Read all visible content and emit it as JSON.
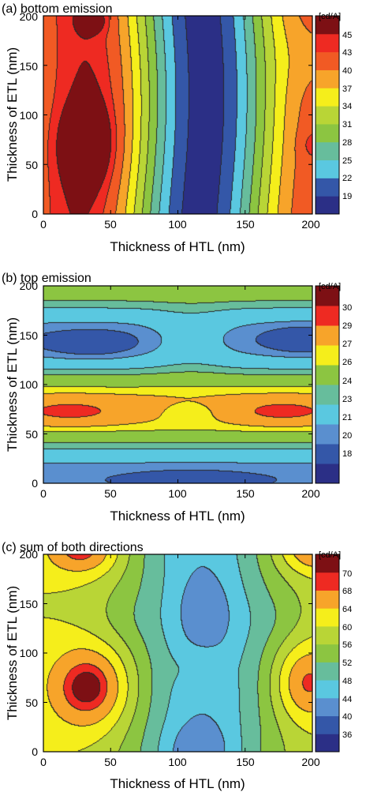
{
  "chart_data": [
    {
      "type": "heatmap",
      "subtype": "filled-contour",
      "title": "(a) bottom emission",
      "xlabel": "Thickness of HTL (nm)",
      "ylabel": "Thickness of ETL (nm)",
      "xlim": [
        0,
        200
      ],
      "ylim": [
        0,
        200
      ],
      "x_ticks": [
        "0",
        "50",
        "100",
        "150",
        "200"
      ],
      "y_ticks": [
        "0",
        "50",
        "100",
        "150",
        "200"
      ],
      "colorbar_unit": "[cd/A]",
      "colorbar_levels": [
        "19",
        "22",
        "25",
        "28",
        "31",
        "34",
        "37",
        "40",
        "43",
        "45"
      ],
      "level_values": [
        19,
        22,
        25,
        28,
        31,
        34,
        37,
        40,
        43,
        45
      ],
      "range": [
        16,
        47
      ],
      "colors": [
        "#2b2f86",
        "#3457a8",
        "#5ac8e0",
        "#67bd9c",
        "#8cc541",
        "#b9d536",
        "#f5ee1b",
        "#f7a42a",
        "#f15a24",
        "#ee2a22",
        "#7d1014"
      ],
      "features": [
        {
          "kind": "minimum_band",
          "x": 117,
          "value": 17
        },
        {
          "kind": "local_maximum",
          "x": 32,
          "y": 70,
          "value": 47
        },
        {
          "kind": "local_maximum",
          "x": 37,
          "y": 195,
          "value": 46
        },
        {
          "kind": "local_maximum",
          "x": 200,
          "y": 70,
          "value": 44
        }
      ]
    },
    {
      "type": "heatmap",
      "subtype": "filled-contour",
      "title": "(b) top emission",
      "xlabel": "Thickness of HTL (nm)",
      "ylabel": "Thickness of ETL (nm)",
      "xlim": [
        0,
        200
      ],
      "ylim": [
        0,
        200
      ],
      "x_ticks": [
        "0",
        "50",
        "100",
        "150",
        "200"
      ],
      "y_ticks": [
        "0",
        "50",
        "100",
        "150",
        "200"
      ],
      "colorbar_unit": "[cd/A]",
      "colorbar_levels": [
        "18",
        "20",
        "21",
        "23",
        "24",
        "26",
        "27",
        "29",
        "30"
      ],
      "level_values": [
        18,
        20,
        21,
        23,
        24,
        26,
        27,
        29,
        30
      ],
      "range": [
        16.5,
        31
      ],
      "colors": [
        "#2b2f86",
        "#3457a8",
        "#5a8fcf",
        "#5ac8e0",
        "#67bd9c",
        "#8cc541",
        "#f5ee1b",
        "#f7a42a",
        "#ee2a22",
        "#7d1014"
      ],
      "features": [
        {
          "kind": "max_band",
          "y": 75,
          "value": 28
        },
        {
          "kind": "max_band",
          "y": 195,
          "value": 26.5
        },
        {
          "kind": "min_band",
          "y": 145,
          "value": 20
        },
        {
          "kind": "min_band",
          "y": 5,
          "value": 19
        },
        {
          "kind": "local_maximum",
          "x": 20,
          "y": 72,
          "value": 29.5
        },
        {
          "kind": "local_maximum",
          "x": 180,
          "y": 72,
          "value": 29.5
        },
        {
          "kind": "local_minimum",
          "x": 35,
          "y": 140,
          "value": 19.5
        },
        {
          "kind": "local_minimum",
          "x": 190,
          "y": 145,
          "value": 19.5
        }
      ]
    },
    {
      "type": "heatmap",
      "subtype": "filled-contour",
      "title": "(c) sum of both directions",
      "xlabel": "Thickness of HTL (nm)",
      "ylabel": "Thickness of ETL (nm)",
      "xlim": [
        0,
        200
      ],
      "ylim": [
        0,
        200
      ],
      "x_ticks": [
        "0",
        "50",
        "100",
        "150",
        "200"
      ],
      "y_ticks": [
        "0",
        "50",
        "100",
        "150",
        "200"
      ],
      "colorbar_unit": "[cd/A]",
      "colorbar_levels": [
        "36",
        "40",
        "44",
        "48",
        "52",
        "56",
        "60",
        "64",
        "68",
        "70"
      ],
      "level_values": [
        36,
        40,
        44,
        48,
        52,
        56,
        60,
        64,
        68,
        70
      ],
      "range": [
        33,
        73
      ],
      "colors": [
        "#2b2f86",
        "#3457a8",
        "#5a8fcf",
        "#5ac8e0",
        "#67bd9c",
        "#8cc541",
        "#b9d536",
        "#f5ee1b",
        "#f7a42a",
        "#ee2a22",
        "#7d1014"
      ],
      "features": [
        {
          "kind": "local_maximum",
          "x": 35,
          "y": 65,
          "value": 72
        },
        {
          "kind": "local_maximum",
          "x": 30,
          "y": 205,
          "value": 72
        },
        {
          "kind": "local_maximum",
          "x": 195,
          "y": 70,
          "value": 70.5
        },
        {
          "kind": "local_maximum",
          "x": 200,
          "y": 205,
          "value": 70
        },
        {
          "kind": "local_minimum",
          "x": 120,
          "y": 140,
          "value": 41
        },
        {
          "kind": "local_minimum",
          "x": 115,
          "y": 5,
          "value": 40
        }
      ]
    }
  ]
}
